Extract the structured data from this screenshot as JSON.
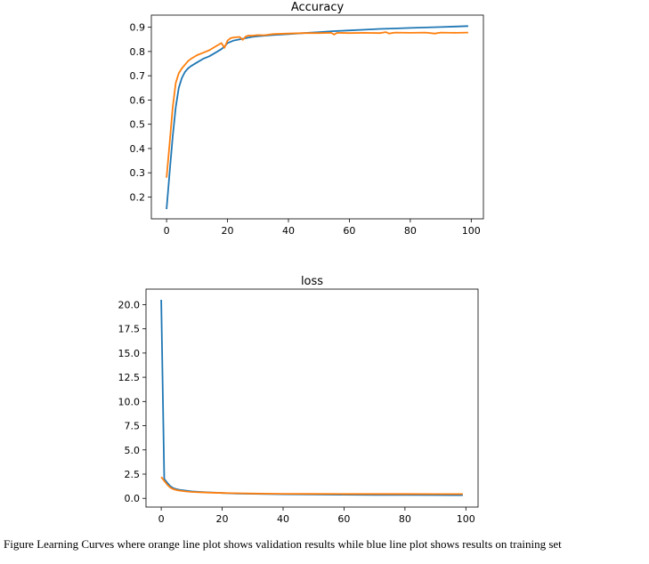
{
  "colors": {
    "train": "#1f77b4",
    "validation": "#ff7f0e",
    "axis": "#000000"
  },
  "caption": "Figure Learning Curves where orange line plot shows validation results while blue line plot shows results on training set",
  "chart_data": [
    {
      "type": "line",
      "title": "Accuracy",
      "xlabel": "",
      "ylabel": "",
      "xlim": [
        -5,
        104
      ],
      "ylim": [
        0.11,
        0.95
      ],
      "xticks": [
        0,
        20,
        40,
        60,
        80,
        100
      ],
      "yticks": [
        0.2,
        0.3,
        0.4,
        0.5,
        0.6,
        0.7,
        0.8,
        0.9
      ],
      "ytick_labels": [
        "0.2",
        "0.3",
        "0.4",
        "0.5",
        "0.6",
        "0.7",
        "0.8",
        "0.9"
      ],
      "grid": false,
      "series": [
        {
          "x": [
            0,
            1,
            2,
            3,
            4,
            5,
            6,
            7,
            8,
            10,
            12,
            14,
            16,
            18,
            19,
            20,
            22,
            24,
            26,
            28,
            30,
            35,
            40,
            45,
            50,
            55,
            60,
            65,
            70,
            75,
            80,
            85,
            90,
            95,
            99
          ],
          "y": [
            0.15,
            0.3,
            0.45,
            0.57,
            0.65,
            0.69,
            0.715,
            0.73,
            0.74,
            0.755,
            0.77,
            0.78,
            0.795,
            0.81,
            0.82,
            0.835,
            0.845,
            0.85,
            0.855,
            0.86,
            0.863,
            0.868,
            0.872,
            0.876,
            0.88,
            0.884,
            0.887,
            0.89,
            0.893,
            0.895,
            0.897,
            0.899,
            0.901,
            0.903,
            0.905
          ]
        },
        {
          "x": [
            0,
            1,
            2,
            3,
            4,
            5,
            6,
            7,
            8,
            10,
            12,
            14,
            16,
            18,
            19,
            20,
            21,
            22,
            24,
            25,
            26,
            27,
            28,
            30,
            32,
            35,
            40,
            45,
            50,
            54,
            55,
            56,
            60,
            65,
            70,
            72,
            73,
            75,
            80,
            85,
            88,
            90,
            95,
            99
          ],
          "y": [
            0.28,
            0.42,
            0.57,
            0.67,
            0.71,
            0.73,
            0.745,
            0.76,
            0.77,
            0.785,
            0.795,
            0.805,
            0.82,
            0.835,
            0.815,
            0.845,
            0.855,
            0.858,
            0.86,
            0.848,
            0.862,
            0.866,
            0.865,
            0.868,
            0.867,
            0.872,
            0.874,
            0.876,
            0.876,
            0.877,
            0.87,
            0.877,
            0.876,
            0.877,
            0.876,
            0.88,
            0.874,
            0.878,
            0.877,
            0.878,
            0.874,
            0.878,
            0.877,
            0.878
          ]
        }
      ]
    },
    {
      "type": "line",
      "title": "loss",
      "xlabel": "",
      "ylabel": "",
      "xlim": [
        -5,
        104
      ],
      "ylim": [
        -0.9,
        21.6
      ],
      "xticks": [
        0,
        20,
        40,
        60,
        80,
        100
      ],
      "yticks": [
        0,
        2.5,
        5,
        7.5,
        10,
        12.5,
        15,
        17.5,
        20
      ],
      "ytick_labels": [
        "0.0",
        "2.5",
        "5.0",
        "7.5",
        "10.0",
        "12.5",
        "15.0",
        "17.5",
        "20.0"
      ],
      "grid": false,
      "series": [
        {
          "x": [
            0,
            1,
            2,
            3,
            4,
            5,
            6,
            8,
            10,
            15,
            20,
            25,
            30,
            40,
            50,
            60,
            70,
            80,
            90,
            99
          ],
          "y": [
            20.5,
            2.0,
            1.6,
            1.25,
            1.05,
            0.95,
            0.88,
            0.8,
            0.72,
            0.62,
            0.55,
            0.5,
            0.47,
            0.42,
            0.4,
            0.38,
            0.36,
            0.35,
            0.34,
            0.33
          ]
        },
        {
          "x": [
            0,
            1,
            2,
            3,
            4,
            5,
            6,
            8,
            10,
            15,
            20,
            25,
            30,
            40,
            50,
            60,
            70,
            80,
            90,
            99
          ],
          "y": [
            2.2,
            1.8,
            1.4,
            1.1,
            0.95,
            0.85,
            0.8,
            0.72,
            0.66,
            0.6,
            0.55,
            0.52,
            0.5,
            0.47,
            0.46,
            0.45,
            0.45,
            0.45,
            0.44,
            0.44
          ]
        }
      ]
    }
  ]
}
